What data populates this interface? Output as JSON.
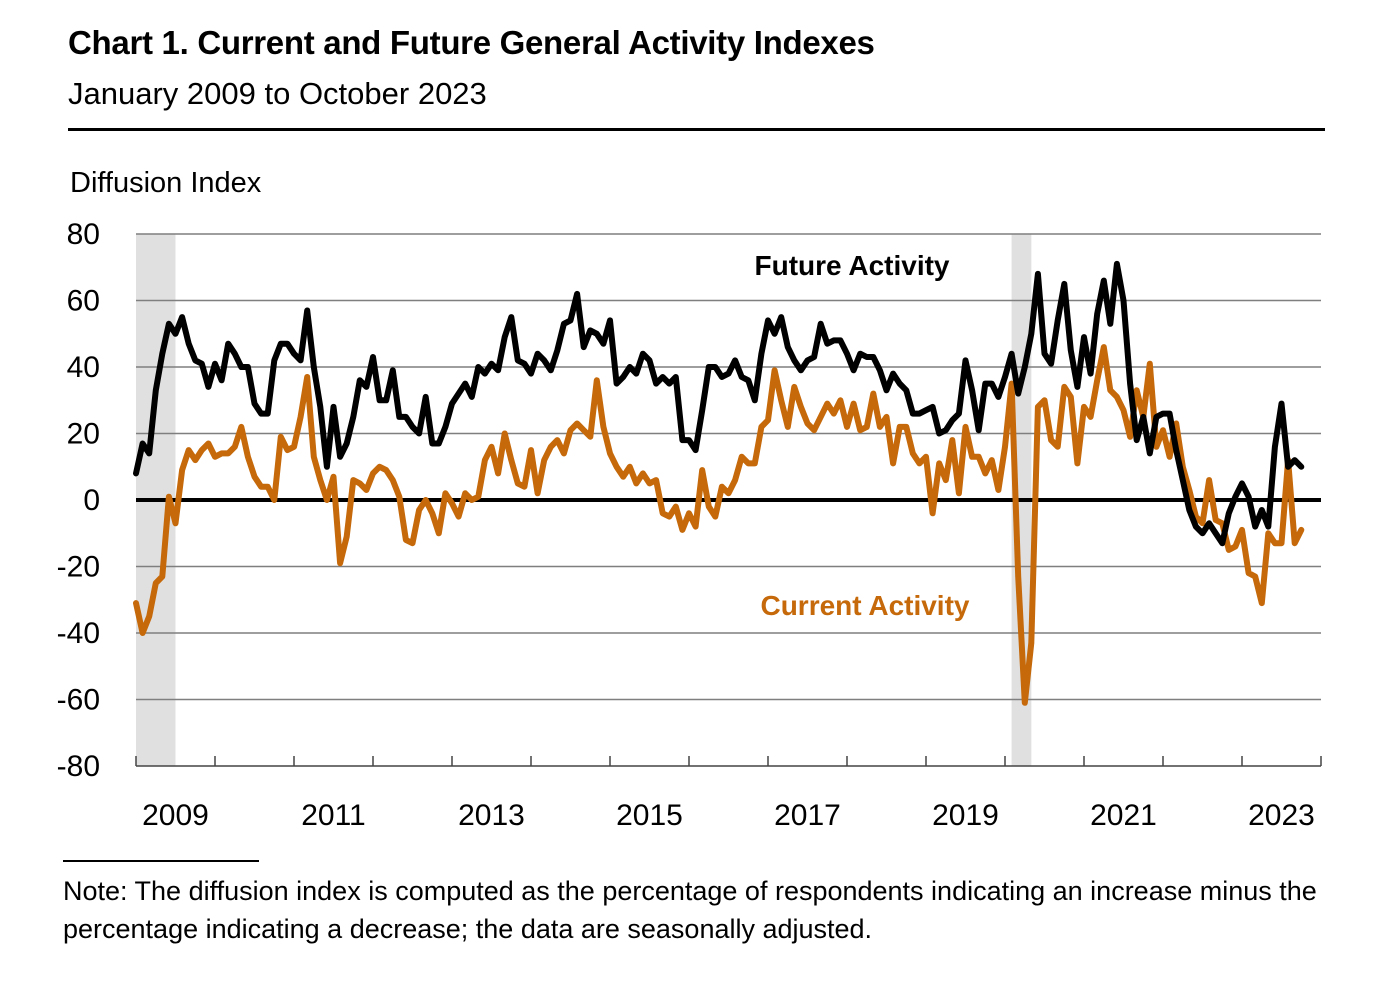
{
  "header": {
    "title": "Chart 1. Current and Future General Activity Indexes",
    "subtitle": "January 2009 to October 2023"
  },
  "footer": {
    "note": "Note: The diffusion index is computed as the percentage of respondents indicating an increase minus the percentage indicating a decrease; the data are seasonally adjusted."
  },
  "colors": {
    "future": "#000000",
    "current": "#C5690A",
    "recession_shade": "#E0E0E0",
    "gridline": "#7F7F7F"
  },
  "chart_data": {
    "type": "line",
    "title": "Chart 1. Current and Future General Activity Indexes",
    "subtitle": "January 2009 to October 2023",
    "xlabel": "",
    "ylabel": "Diffusion Index",
    "ylim": [
      -80,
      80
    ],
    "yticks": [
      80,
      60,
      40,
      20,
      0,
      -20,
      -40,
      -60,
      -80
    ],
    "x_start": "2009-01",
    "x_end": "2023-10",
    "x_frequency": "monthly",
    "xlim": [
      "2009-01",
      "2023-12"
    ],
    "xtick_labels": [
      "2009",
      "2011",
      "2013",
      "2015",
      "2017",
      "2019",
      "2021",
      "2023"
    ],
    "grid": "horizontal",
    "legend": "inline labels",
    "recession_shading": [
      {
        "start": "2009-01",
        "end": "2009-06"
      },
      {
        "start": "2020-02",
        "end": "2020-04"
      }
    ],
    "series": [
      {
        "name": "Future Activity",
        "label_position": "upper-center",
        "values": [
          8,
          17,
          14,
          33,
          44,
          53,
          50,
          55,
          47,
          42,
          41,
          34,
          41,
          36,
          47,
          44,
          40,
          40,
          29,
          26,
          26,
          42,
          47,
          47,
          44,
          42,
          57,
          40,
          28,
          10,
          28,
          13,
          17,
          25,
          36,
          34,
          43,
          30,
          30,
          39,
          25,
          25,
          22,
          20,
          31,
          17,
          17,
          22,
          29,
          32,
          35,
          31,
          40,
          38,
          41,
          39,
          49,
          55,
          42,
          41,
          38,
          44,
          42,
          39,
          45,
          53,
          54,
          62,
          46,
          51,
          50,
          47,
          54,
          35,
          37,
          40,
          38,
          44,
          42,
          35,
          37,
          35,
          37,
          18,
          18,
          15,
          27,
          40,
          40,
          37,
          38,
          42,
          37,
          36,
          30,
          44,
          54,
          50,
          55,
          46,
          42,
          39,
          42,
          43,
          53,
          47,
          48,
          48,
          44,
          39,
          44,
          43,
          43,
          39,
          33,
          38,
          35,
          33,
          26,
          26,
          27,
          28,
          20,
          21,
          24,
          26,
          42,
          33,
          21,
          35,
          35,
          31,
          37,
          44,
          32,
          40,
          50,
          68,
          44,
          41,
          54,
          65,
          45,
          34,
          49,
          38,
          56,
          66,
          53,
          71,
          60,
          35,
          18,
          25,
          14,
          25,
          26,
          26,
          15,
          6,
          -3,
          -8,
          -10,
          -7,
          -10,
          -13,
          -4,
          1,
          5,
          1,
          -8,
          -3,
          -8,
          16,
          29,
          10,
          12,
          10
        ]
      },
      {
        "name": "Current Activity",
        "label_position": "lower-center",
        "values": [
          -31,
          -40,
          -35,
          -25,
          -23,
          1,
          -7,
          9,
          15,
          12,
          15,
          17,
          13,
          14,
          14,
          16,
          22,
          13,
          7,
          4,
          4,
          0,
          19,
          15,
          16,
          25,
          37,
          13,
          6,
          0,
          7,
          -19,
          -11,
          6,
          5,
          3,
          8,
          10,
          9,
          6,
          1,
          -12,
          -13,
          -3,
          0,
          -4,
          -10,
          2,
          -1,
          -5,
          2,
          0,
          1,
          12,
          16,
          8,
          20,
          12,
          5,
          4,
          15,
          2,
          12,
          16,
          18,
          14,
          21,
          23,
          21,
          19,
          36,
          22,
          14,
          10,
          7,
          10,
          5,
          8,
          5,
          6,
          -4,
          -5,
          -2,
          -9,
          -4,
          -8,
          9,
          -2,
          -5,
          4,
          2,
          6,
          13,
          11,
          11,
          22,
          24,
          39,
          30,
          22,
          34,
          28,
          23,
          21,
          25,
          29,
          26,
          30,
          22,
          29,
          21,
          22,
          32,
          22,
          25,
          11,
          22,
          22,
          14,
          11,
          13,
          -4,
          11,
          6,
          18,
          2,
          22,
          13,
          13,
          8,
          12,
          3,
          16,
          35,
          -23,
          -61,
          -43,
          28,
          30,
          18,
          16,
          34,
          31,
          11,
          28,
          25,
          36,
          46,
          33,
          31,
          27,
          19,
          33,
          25,
          41,
          16,
          21,
          13,
          23,
          10,
          3,
          -5,
          -7,
          6,
          -6,
          -7,
          -15,
          -14,
          -9,
          -22,
          -23,
          -31,
          -10,
          -13,
          -13,
          12,
          -13,
          -9
        ]
      }
    ]
  }
}
